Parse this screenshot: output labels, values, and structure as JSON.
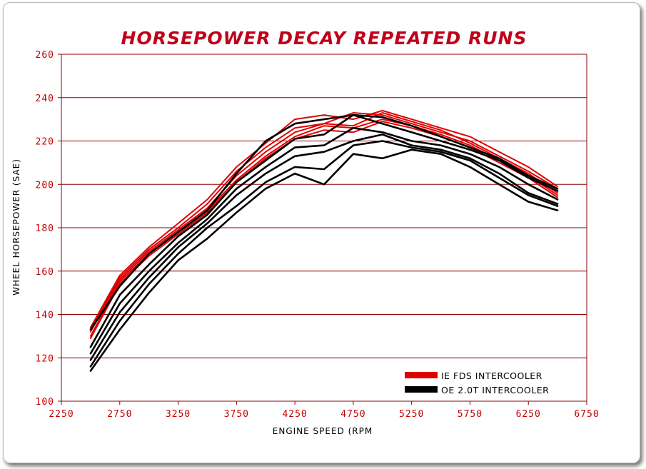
{
  "chart_data": {
    "type": "line",
    "title": "HORSEPOWER DECAY REPEATED RUNS",
    "xlabel": "ENGINE SPEED (RPM",
    "ylabel": "WHEEL HORSEPOWER (SAE)",
    "xlim": [
      2250,
      6750
    ],
    "ylim": [
      100,
      260
    ],
    "x_ticks": [
      "2250",
      "2750",
      "3250",
      "3750",
      "4250",
      "4750",
      "5250",
      "5750",
      "6250",
      "6750"
    ],
    "y_ticks": [
      "100",
      "120",
      "140",
      "160",
      "180",
      "200",
      "220",
      "240",
      "260"
    ],
    "grid": "horizontal",
    "legend_position": "bottom-right",
    "colors": {
      "IE FDS INTERCOOLER": "#e00000",
      "OE 2.0T INTERCOOLER": "#000000",
      "grid": "#8b0000",
      "title": "#c0001a"
    },
    "legend": [
      "IE FDS INTERCOOLER",
      "OE 2.0T INTERCOOLER"
    ],
    "x": [
      2500,
      2750,
      3000,
      3250,
      3500,
      3750,
      4000,
      4250,
      4500,
      4750,
      5000,
      5250,
      5500,
      5750,
      6000,
      6250,
      6500
    ],
    "series": [
      {
        "group": "IE FDS INTERCOOLER",
        "values": [
          134,
          158,
          171,
          182,
          193,
          208,
          219,
          230,
          232,
          230,
          234,
          230,
          226,
          222,
          215,
          208,
          199
        ]
      },
      {
        "group": "IE FDS INTERCOOLER",
        "values": [
          133,
          157,
          170,
          180,
          191,
          206,
          217,
          226,
          228,
          233,
          232,
          228,
          224,
          220,
          213,
          206,
          198
        ]
      },
      {
        "group": "IE FDS INTERCOOLER",
        "values": [
          132,
          156,
          169,
          179,
          189,
          204,
          215,
          224,
          228,
          227,
          233,
          229,
          225,
          219,
          212,
          205,
          196
        ]
      },
      {
        "group": "IE FDS INTERCOOLER",
        "values": [
          130,
          155,
          168,
          178,
          188,
          202,
          213,
          222,
          227,
          226,
          230,
          227,
          223,
          218,
          211,
          204,
          195
        ]
      },
      {
        "group": "IE FDS INTERCOOLER",
        "values": [
          129,
          154,
          167,
          177,
          187,
          201,
          212,
          221,
          225,
          224,
          229,
          226,
          222,
          217,
          210,
          203,
          194
        ]
      },
      {
        "group": "OE 2.0T INTERCOOLER",
        "values": [
          133,
          153,
          168,
          178,
          188,
          205,
          220,
          228,
          230,
          232,
          231,
          227,
          222,
          217,
          212,
          204,
          198
        ]
      },
      {
        "group": "OE 2.0T INTERCOOLER",
        "values": [
          125,
          149,
          163,
          176,
          186,
          201,
          211,
          221,
          223,
          232,
          228,
          224,
          220,
          216,
          211,
          203,
          197
        ]
      },
      {
        "group": "OE 2.0T INTERCOOLER",
        "values": [
          122,
          145,
          160,
          173,
          184,
          198,
          208,
          217,
          218,
          226,
          224,
          220,
          218,
          214,
          208,
          200,
          193
        ]
      },
      {
        "group": "OE 2.0T INTERCOOLER",
        "values": [
          119,
          141,
          157,
          171,
          182,
          195,
          205,
          213,
          215,
          220,
          223,
          218,
          216,
          212,
          205,
          196,
          191
        ]
      },
      {
        "group": "OE 2.0T INTERCOOLER",
        "values": [
          116,
          137,
          154,
          168,
          180,
          190,
          201,
          208,
          207,
          218,
          220,
          217,
          215,
          211,
          203,
          195,
          190
        ]
      },
      {
        "group": "OE 2.0T INTERCOOLER",
        "values": [
          114,
          133,
          150,
          165,
          175,
          187,
          198,
          205,
          200,
          214,
          212,
          216,
          214,
          208,
          200,
          192,
          188
        ]
      }
    ]
  }
}
